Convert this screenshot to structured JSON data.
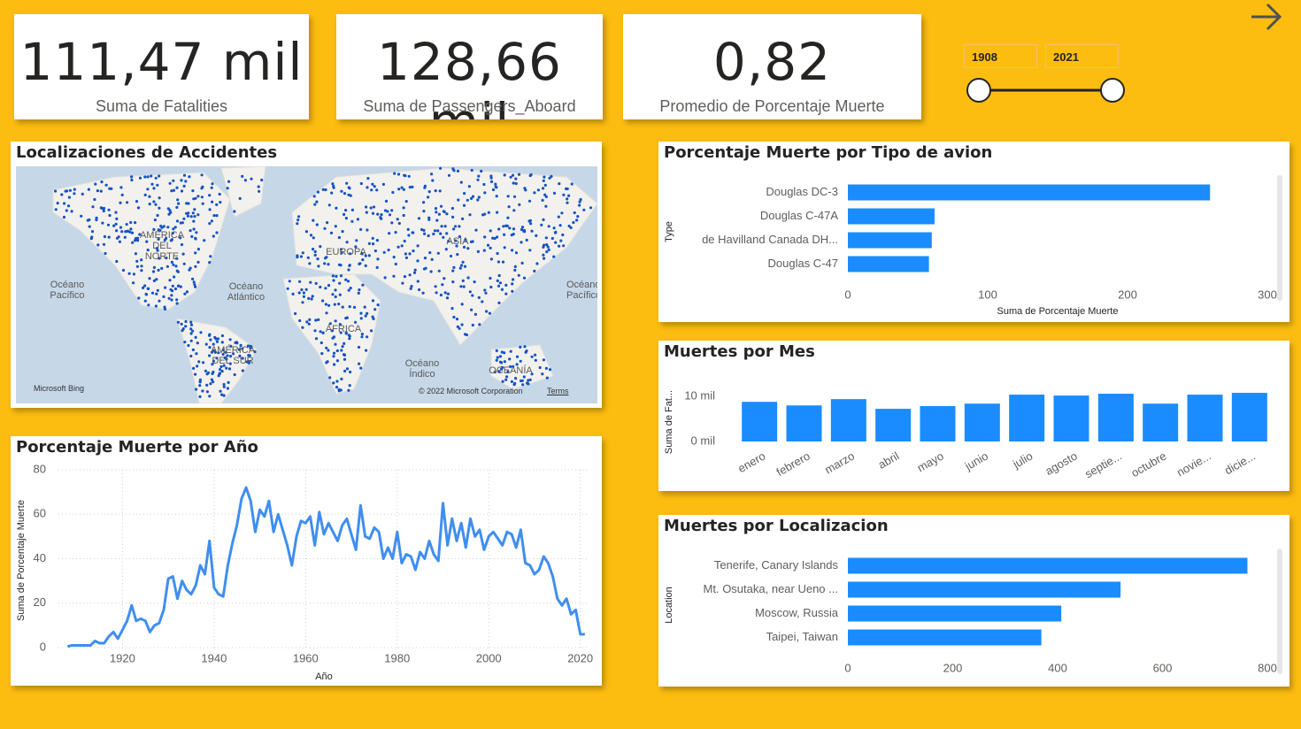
{
  "kpis": [
    {
      "value": "111,47 mil",
      "label": "Suma de Fatalities"
    },
    {
      "value": "128,66 mil",
      "label": "Suma de Passengers_Aboard"
    },
    {
      "value": "0,82",
      "label": "Promedio de Porcentaje Muerte"
    }
  ],
  "slider": {
    "start": 1908,
    "end": 2021
  },
  "map": {
    "title": "Localizaciones de Accidentes",
    "labels": [
      "AMÉRICA DEL NORTE",
      "Océano Pacífico",
      "Océano Atlántico",
      "EUROPA",
      "ASIA",
      "ÁFRICA",
      "AMÉRICA DEL SUR",
      "Océano Índico",
      "OCEANÍA",
      "Océano Pacífico"
    ],
    "attribution": "Microsoft Bing",
    "copyright": "© 2022 Microsoft Corporation",
    "terms": "Terms"
  },
  "chart_data": [
    {
      "type": "line",
      "title": "Porcentaje Muerte por Año",
      "x_label": "Año",
      "y_label": "Suma de Porcentaje Muerte",
      "x": [
        1908,
        1909,
        1910,
        1911,
        1912,
        1913,
        1914,
        1915,
        1916,
        1917,
        1918,
        1919,
        1920,
        1921,
        1922,
        1923,
        1924,
        1925,
        1926,
        1927,
        1928,
        1929,
        1930,
        1931,
        1932,
        1933,
        1934,
        1935,
        1936,
        1937,
        1938,
        1939,
        1940,
        1941,
        1942,
        1943,
        1944,
        1945,
        1946,
        1947,
        1948,
        1949,
        1950,
        1951,
        1952,
        1953,
        1954,
        1955,
        1956,
        1957,
        1958,
        1959,
        1960,
        1961,
        1962,
        1963,
        1964,
        1965,
        1966,
        1967,
        1968,
        1969,
        1970,
        1971,
        1972,
        1973,
        1974,
        1975,
        1976,
        1977,
        1978,
        1979,
        1980,
        1981,
        1982,
        1983,
        1984,
        1985,
        1986,
        1987,
        1988,
        1989,
        1990,
        1991,
        1992,
        1993,
        1994,
        1995,
        1996,
        1997,
        1998,
        1999,
        2000,
        2001,
        2002,
        2003,
        2004,
        2005,
        2006,
        2007,
        2008,
        2009,
        2010,
        2011,
        2012,
        2013,
        2014,
        2015,
        2016,
        2017,
        2018,
        2019,
        2020,
        2021
      ],
      "values": [
        0.5,
        1,
        1,
        1,
        1,
        1,
        3,
        2,
        2,
        5,
        7,
        4,
        8,
        12,
        19,
        12,
        13,
        12,
        7,
        10,
        11,
        17,
        31,
        32,
        22,
        30,
        26,
        24,
        28,
        37,
        33,
        48,
        27,
        24,
        23,
        37,
        47,
        55,
        67,
        72,
        66,
        52,
        62,
        59,
        66,
        52,
        60,
        53,
        46,
        37,
        50,
        57,
        56,
        59,
        46,
        61,
        51,
        56,
        52,
        48,
        55,
        58,
        51,
        44,
        64,
        50,
        49,
        54,
        52,
        40,
        45,
        40,
        52,
        38,
        42,
        41,
        35,
        43,
        40,
        48,
        42,
        39,
        65,
        46,
        58,
        48,
        56,
        45,
        58,
        50,
        53,
        44,
        50,
        52,
        49,
        46,
        52,
        51,
        45,
        53,
        38,
        37,
        33,
        35,
        41,
        38,
        32,
        22,
        19,
        22,
        15,
        17,
        6,
        6
      ],
      "color": "#3f8ef0",
      "xlim": [
        1906,
        2022
      ],
      "ylim": [
        0,
        80
      ],
      "xticks": [
        1920,
        1940,
        1960,
        1980,
        2000,
        2020
      ],
      "yticks": [
        0,
        20,
        40,
        60,
        80
      ],
      "grid": true
    },
    {
      "type": "bar",
      "orientation": "horizontal",
      "title": "Porcentaje Muerte por Tipo de avion",
      "x_label": "Suma de Porcentaje Muerte",
      "y_label": "Type",
      "categories": [
        "Douglas DC-3",
        "Douglas C-47A",
        "de Havilland Canada DH...",
        "Douglas C-47"
      ],
      "values": [
        259,
        62,
        60,
        58
      ],
      "color": "#1a8cff",
      "xlim": [
        0,
        300
      ],
      "xticks": [
        0,
        100,
        200,
        300
      ],
      "grid": false
    },
    {
      "type": "bar",
      "orientation": "vertical",
      "title": "Muertes por Mes",
      "y_label": "Suma de Fat...",
      "categories": [
        "enero",
        "febrero",
        "marzo",
        "abril",
        "mayo",
        "junio",
        "julio",
        "agosto",
        "septie...",
        "octubre",
        "novie...",
        "dicie..."
      ],
      "values": [
        8800,
        8000,
        9400,
        7250,
        7850,
        8400,
        10400,
        10200,
        10600,
        8400,
        10400,
        10800
      ],
      "color": "#1a8cff",
      "ylim": [
        0,
        11000
      ],
      "yticks": [
        {
          "value": 0,
          "label": "0 mil"
        },
        {
          "value": 10000,
          "label": "10 mil"
        }
      ],
      "grid": false
    },
    {
      "type": "bar",
      "orientation": "horizontal",
      "title": "Muertes por Localizacion",
      "y_label": "Location",
      "categories": [
        "Tenerife, Canary Islands",
        "Mt. Osutaka, near Ueno ...",
        "Moscow, Russia",
        "Taipei, Taiwan"
      ],
      "values": [
        762,
        520,
        407,
        369
      ],
      "color": "#1a8cff",
      "xlim": [
        0,
        800
      ],
      "xticks": [
        0,
        200,
        400,
        600,
        800
      ],
      "grid": false
    }
  ]
}
